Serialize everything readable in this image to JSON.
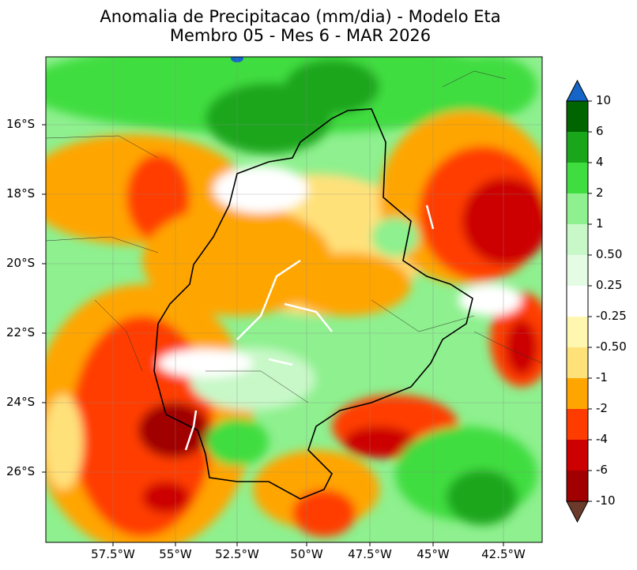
{
  "title_line1": "Anomalia de Precipitacao (mm/dia) - Modelo Eta",
  "title_line2": "Membro 05 - Mes 6 - MAR 2026",
  "lat_labels": [
    "16°S",
    "18°S",
    "20°S",
    "22°S",
    "24°S",
    "26°S"
  ],
  "lon_labels": [
    "57.5°W",
    "55°W",
    "52.5°W",
    "50°W",
    "47.5°W",
    "45°W",
    "42.5°W"
  ],
  "colorbar": {
    "ticks": [
      "10",
      "6",
      "4",
      "2",
      "1",
      "0.50",
      "0.25",
      "-0.25",
      "-0.50",
      "-1",
      "-2",
      "-4",
      "-6",
      "-10"
    ],
    "colors": [
      "#006400",
      "#1aa61a",
      "#3fdd3f",
      "#8ef08e",
      "#c8f8c8",
      "#e4fbe4",
      "#ffffff",
      "#fff6b0",
      "#ffe17a",
      "#ffa500",
      "#ff3c00",
      "#cc0000",
      "#a00000"
    ],
    "over_color": "#1565c8",
    "under_color": "#6b3a2a"
  }
}
